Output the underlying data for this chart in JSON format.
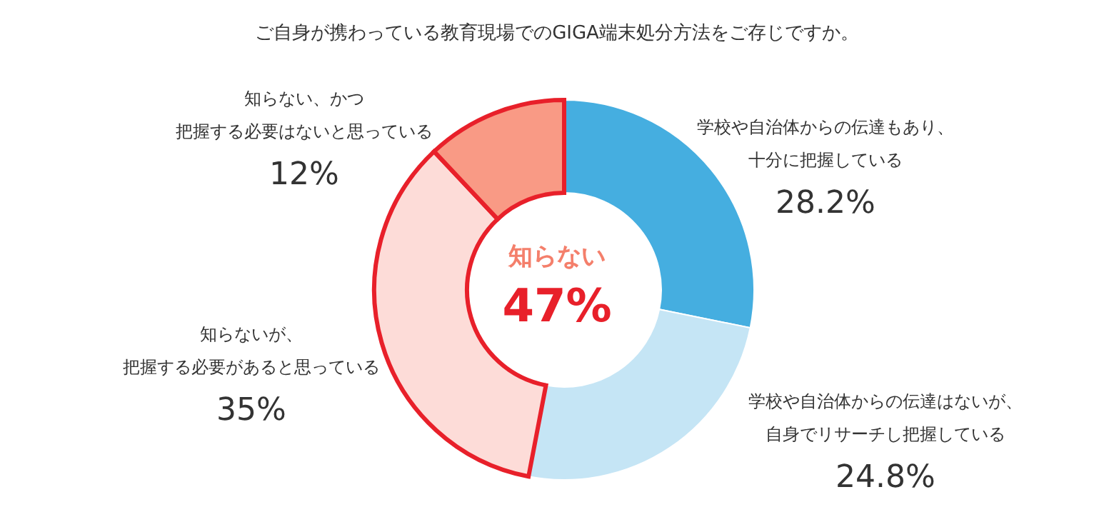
{
  "chart_data": {
    "type": "donut",
    "title": "ご自身が携わっている教育現場でのGIGA端末処分方法をご存じですか。",
    "categories": [
      "学校や自治体からの伝達もあり、十分に把握している",
      "学校や自治体からの伝達はないが、自身でリサーチし把握している",
      "知らないが、把握する必要があると思っている",
      "知らない、かつ把握する必要はないと思っている"
    ],
    "values": [
      28.2,
      24.8,
      35,
      12
    ],
    "colors": [
      "#45aee0",
      "#c5e5f5",
      "#fddcd8",
      "#f99a85"
    ],
    "value_labels": [
      "28.2%",
      "24.8%",
      "35%",
      "12%"
    ],
    "annotations": [
      "知らない",
      "47%"
    ]
  }
}
